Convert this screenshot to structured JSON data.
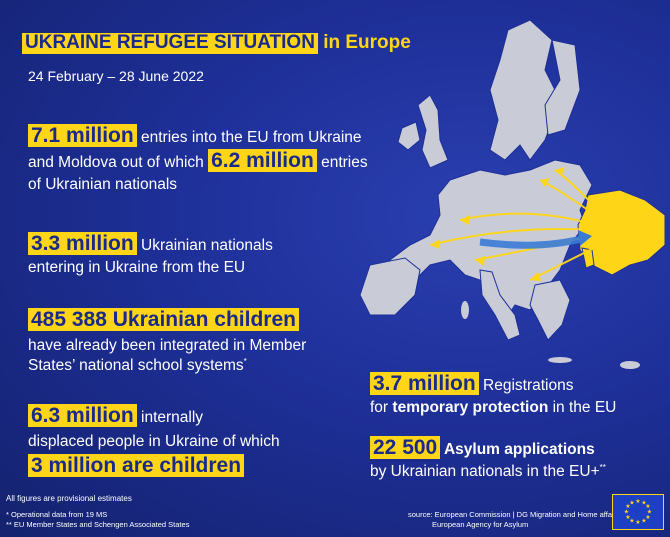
{
  "title": {
    "highlight": "UKRAINE REFUGEE SITUATION",
    "rest": " in Europe"
  },
  "date_range": "24 February – 28 June 2022",
  "stats": {
    "entries": {
      "value": "7.1 million",
      "text1": " entries into the EU from Ukraine",
      "text2": "and Moldova out of which",
      "value2": "6.2 million",
      "text3": " entries",
      "text4": "of Ukrainian nationals"
    },
    "returns": {
      "value": "3.3 million",
      "text1": " Ukrainian nationals",
      "text2": "entering in Ukraine from the EU"
    },
    "children": {
      "value": "485 388 Ukrainian children",
      "text1": "have already been integrated in Member",
      "text2": "States’ national school systems",
      "mark": "*"
    },
    "idp": {
      "value": "6.3 million",
      "text1": " internally",
      "text2": "displaced people in Ukraine of which",
      "value2": "3 million are children"
    },
    "registrations": {
      "value": "3.7 million",
      "text1": " Registrations",
      "text2a": "for ",
      "text2b": "temporary protection",
      "text2c": " in the EU"
    },
    "asylum": {
      "value": "22 500",
      "text1": " Asylum applications",
      "text2": "by Ukrainian nationals in the EU+",
      "mark": "**"
    }
  },
  "footnotes": {
    "provisional": "All figures are provisional estimates",
    "note1": "*  Operational data from 19 MS",
    "note2": "** EU Member States and Schengen Associated States"
  },
  "source": {
    "line1": "source: European Commission | DG Migration and Home affairs",
    "line2": "European Agency for Asylum"
  },
  "colors": {
    "accent": "#ffd617",
    "background": "#1e2f98",
    "map_grey": "#c9ccd6"
  }
}
